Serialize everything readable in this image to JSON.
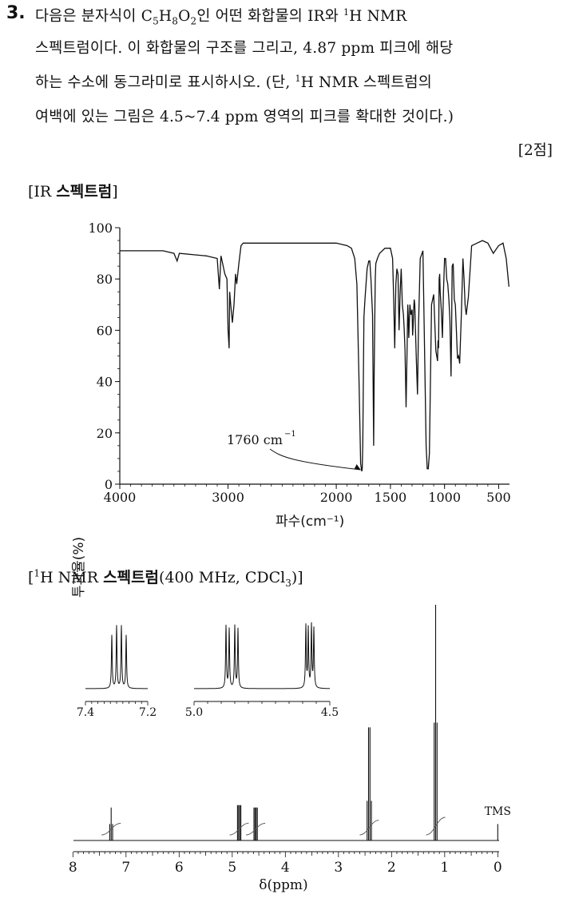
{
  "question": {
    "number": "3.",
    "line1_pre": "다음은 분자식이 ",
    "formula_parts": [
      "C",
      "5",
      "H",
      "8",
      "O",
      "2"
    ],
    "line1_post": "인 어떤 화합물의 IR와 ",
    "line1_nmr_sup": "1",
    "line1_nmr": "H NMR",
    "line2": "스펙트럼이다. 이 화합물의 구조를 그리고, 4.87 ppm 피크에 해당",
    "line3_pre": "하는 수소에 동그라미로 표시하시오. (단, ",
    "line3_sup": "1",
    "line3_post": "H NMR 스펙트럼의",
    "line4": "여백에 있는 그림은 4.5~7.4 ppm 영역의 피크를 확대한 것이다.)",
    "points": "[2점]"
  },
  "ir_section": {
    "bracket_open": "[IR ",
    "label_bold": "스펙트럼",
    "bracket_close": "]"
  },
  "nmr_section": {
    "open": "[",
    "sup": "1",
    "nmr": "H NMR ",
    "label_bold": "스펙트럼",
    "close_pre": "(400 MHz, CDCl",
    "sub": "3",
    "close_post": ")]"
  },
  "chart_data": [
    {
      "type": "line",
      "title": "",
      "xlabel": "파수(cm⁻¹)",
      "ylabel": "투과율(%)",
      "xlim": [
        4000,
        400
      ],
      "ylim": [
        0,
        100
      ],
      "x_ticks": [
        "4000",
        "3000",
        "2000",
        "1500",
        "1000",
        "500"
      ],
      "y_ticks": [
        "0",
        "20",
        "40",
        "60",
        "80",
        "100"
      ],
      "annotation": {
        "text": "1760 cm",
        "sup": "−1",
        "x": 1760,
        "y": 5
      },
      "series": [
        {
          "x": [
            4000,
            3600,
            3500,
            3470,
            3450,
            3200,
            3100,
            3080,
            3065,
            3050,
            3030,
            3010,
            3000,
            2990,
            2985,
            2975,
            2960,
            2945,
            2930,
            2920,
            2900,
            2880,
            2860,
            2800,
            2600,
            2400,
            2200,
            2000,
            1900,
            1860,
            1830,
            1810,
            1790,
            1775,
            1765,
            1760,
            1755,
            1745,
            1735,
            1715,
            1700,
            1690,
            1680,
            1665,
            1655,
            1650,
            1645,
            1640,
            1635,
            1620,
            1600,
            1550,
            1500,
            1480,
            1470,
            1460,
            1450,
            1440,
            1430,
            1420,
            1410,
            1400,
            1390,
            1380,
            1372,
            1365,
            1355,
            1345,
            1340,
            1335,
            1330,
            1320,
            1310,
            1300,
            1295,
            1290,
            1285,
            1280,
            1275,
            1270,
            1260,
            1250,
            1240,
            1225,
            1200,
            1180,
            1170,
            1160,
            1150,
            1140,
            1130,
            1120,
            1100,
            1080,
            1065,
            1060,
            1055,
            1050,
            1045,
            1040,
            1030,
            1020,
            1010,
            1000,
            990,
            980,
            970,
            960,
            950,
            940,
            935,
            930,
            920,
            910,
            900,
            880,
            870,
            860,
            845,
            830,
            820,
            810,
            800,
            780,
            750,
            700,
            650,
            600,
            550,
            500,
            460,
            430,
            405
          ],
          "y": [
            91,
            91,
            90,
            87,
            90,
            89,
            88,
            76,
            89,
            86,
            82,
            80,
            60,
            53,
            75,
            70,
            63,
            70,
            82,
            78,
            86,
            93,
            94,
            94,
            94,
            94,
            94,
            94,
            93,
            92,
            88,
            78,
            40,
            8,
            5,
            6,
            16,
            65,
            72,
            84,
            87,
            87,
            80,
            66,
            15,
            45,
            62,
            80,
            86,
            88,
            90,
            92,
            92,
            88,
            72,
            53,
            78,
            84,
            82,
            60,
            75,
            84,
            70,
            66,
            60,
            52,
            30,
            55,
            70,
            65,
            57,
            70,
            66,
            68,
            58,
            62,
            68,
            72,
            70,
            62,
            48,
            35,
            62,
            88,
            91,
            40,
            15,
            6,
            6,
            12,
            40,
            70,
            74,
            52,
            48,
            56,
            53,
            80,
            82,
            75,
            68,
            57,
            75,
            88,
            88,
            80,
            78,
            72,
            64,
            42,
            60,
            85,
            86,
            72,
            70,
            49,
            50,
            47,
            66,
            88,
            80,
            70,
            66,
            73,
            93,
            94,
            95,
            94,
            90,
            93,
            94,
            88,
            77
          ]
        }
      ]
    },
    {
      "type": "line",
      "title": "",
      "xlabel": "δ(ppm)",
      "ylabel": "",
      "xlim": [
        8.2,
        -0.1
      ],
      "x_ticks": [
        "8",
        "7",
        "6",
        "5",
        "4",
        "3",
        "2",
        "1",
        "0"
      ],
      "annotation": {
        "text": "TMS",
        "x": 0
      },
      "peaks": [
        {
          "ppm": 7.28,
          "relative_height": 0.14,
          "multiplicity": "triplet"
        },
        {
          "ppm": 4.87,
          "relative_height": 0.15,
          "multiplicity": "doublet of doublets"
        },
        {
          "ppm": 4.56,
          "relative_height": 0.14,
          "multiplicity": "doublet of doublets"
        },
        {
          "ppm": 2.42,
          "relative_height": 0.48,
          "multiplicity": "quartet"
        },
        {
          "ppm": 1.17,
          "relative_height": 1.0,
          "multiplicity": "triplet"
        },
        {
          "ppm": 0.0,
          "relative_height": 0.07,
          "multiplicity": "singlet"
        }
      ],
      "insets": [
        {
          "xlim": [
            7.4,
            7.2
          ],
          "x_ticks": [
            "7.4",
            "7.2"
          ]
        },
        {
          "xlim": [
            5.0,
            4.5
          ],
          "x_ticks": [
            "5.0",
            "4.5"
          ]
        }
      ]
    }
  ]
}
